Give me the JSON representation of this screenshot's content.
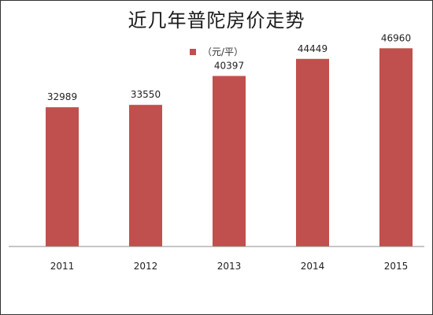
{
  "colors": {
    "bar": "#c0504d",
    "axis": "#8c8c8c"
  },
  "chart_data": {
    "type": "bar",
    "title": "近几年普陀房价走势",
    "categories": [
      "2011",
      "2012",
      "2013",
      "2014",
      "2015"
    ],
    "series": [
      {
        "name": "（元/平）",
        "values": [
          32989,
          33550,
          40397,
          44449,
          46960
        ]
      }
    ],
    "ylim": [
      0,
      50000
    ],
    "grid": false,
    "legend_position": "top"
  }
}
